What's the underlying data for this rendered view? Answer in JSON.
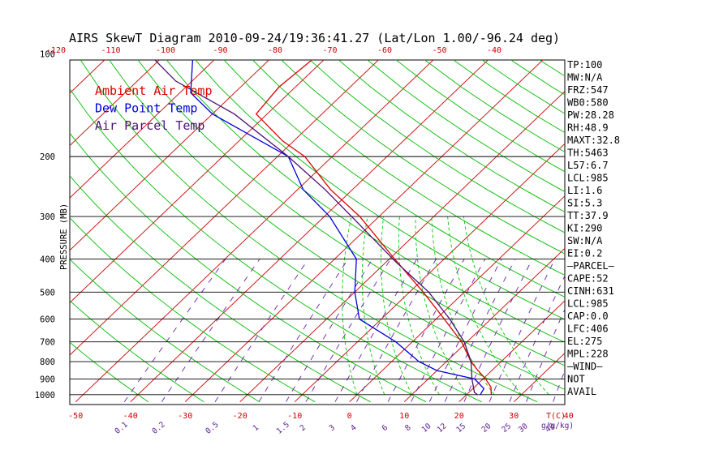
{
  "title": "AIRS SkewT Diagram 2010-09-24/19:36:41.27 (Lat/Lon 1.00/-96.24 deg)",
  "colors": {
    "ambient": "#dd0000",
    "dewpoint": "#0000dd",
    "parcel": "#4b1070",
    "isotherm": "#cc0000",
    "dry_adiabat": "#00bb00",
    "moist_adiabat": "#00cc00",
    "mixing_ratio": "#6a1fb0",
    "isobar": "#000000"
  },
  "chart_data": {
    "type": "line",
    "title": "AIRS SkewT Diagram 2010-09-24/19:36:41.27 (Lat/Lon 1.00/-96.24 deg)",
    "ylabel": "PRESSURE (MB)",
    "xlabel": "T(C)",
    "y_scale": "log",
    "ylim": [
      1050,
      100
    ],
    "pressure_ticks": [
      100,
      200,
      300,
      400,
      500,
      600,
      700,
      800,
      900,
      1000
    ],
    "top_temp_ticks": [
      "-120",
      "-110",
      "-100",
      "-90",
      "-80",
      "-70",
      "-60",
      "-50",
      "-40"
    ],
    "bottom_temp_ticks": [
      "-50",
      "-40",
      "-30",
      "-20",
      "-10",
      "0",
      "10",
      "20",
      "30",
      "40"
    ],
    "mixing_ratio_ticks": [
      "0.1",
      "0.2",
      "0.5",
      "1",
      "1.5",
      "2",
      "3",
      "4",
      "6",
      "8",
      "10",
      "12",
      "15",
      "20",
      "25",
      "30",
      "40"
    ],
    "mixing_ratio_unit": "g(g/kg)",
    "legend": [
      "Ambient Air Temp",
      "Dew Point Temp",
      "Air Parcel Temp"
    ],
    "series": [
      {
        "name": "Ambient Air Temp",
        "points": [
          [
            1000,
            24.5
          ],
          [
            950,
            23.0
          ],
          [
            900,
            20.5
          ],
          [
            850,
            17.5
          ],
          [
            800,
            14.5
          ],
          [
            700,
            9.0
          ],
          [
            600,
            1.5
          ],
          [
            500,
            -7.5
          ],
          [
            400,
            -19.0
          ],
          [
            300,
            -33.5
          ],
          [
            250,
            -44.0
          ],
          [
            200,
            -55.0
          ],
          [
            180,
            -62.0
          ],
          [
            150,
            -72.0
          ],
          [
            125,
            -73.0
          ],
          [
            100,
            -72.0
          ]
        ]
      },
      {
        "name": "Dew Point Temp",
        "points": [
          [
            1000,
            22.5
          ],
          [
            960,
            22.0
          ],
          [
            900,
            18.5
          ],
          [
            850,
            10.0
          ],
          [
            800,
            5.0
          ],
          [
            700,
            -3.0
          ],
          [
            600,
            -14.0
          ],
          [
            500,
            -20.0
          ],
          [
            400,
            -26.0
          ],
          [
            300,
            -39.0
          ],
          [
            250,
            -49.0
          ],
          [
            200,
            -58.0
          ],
          [
            150,
            -80.0
          ],
          [
            130,
            -88.0
          ],
          [
            100,
            -95.0
          ]
        ]
      },
      {
        "name": "Air Parcel Temp",
        "points": [
          [
            1000,
            22.0
          ],
          [
            985,
            21.0
          ],
          [
            900,
            18.0
          ],
          [
            800,
            14.5
          ],
          [
            700,
            9.5
          ],
          [
            600,
            2.5
          ],
          [
            500,
            -6.5
          ],
          [
            406,
            -18.5
          ],
          [
            300,
            -35.0
          ],
          [
            250,
            -45.0
          ],
          [
            200,
            -58.0
          ],
          [
            150,
            -76.0
          ],
          [
            120,
            -93.0
          ],
          [
            100,
            -103.0
          ]
        ]
      }
    ]
  },
  "indices": [
    "TP:100",
    "MW:N/A",
    "FRZ:547",
    "WB0:580",
    "PW:28.28",
    "RH:48.9",
    "MAXT:32.8",
    "TH:5463",
    "L57:6.7",
    "LCL:985",
    "LI:1.6",
    "SI:5.3",
    "TT:37.9",
    "KI:290",
    "SW:N/A",
    "EI:0.2",
    "—PARCEL—",
    "CAPE:52",
    "CINH:631",
    "LCL:985",
    "CAP:0.0",
    "LFC:406",
    "EL:275",
    "MPL:228",
    "—WIND—",
    "NOT",
    "AVAIL"
  ]
}
